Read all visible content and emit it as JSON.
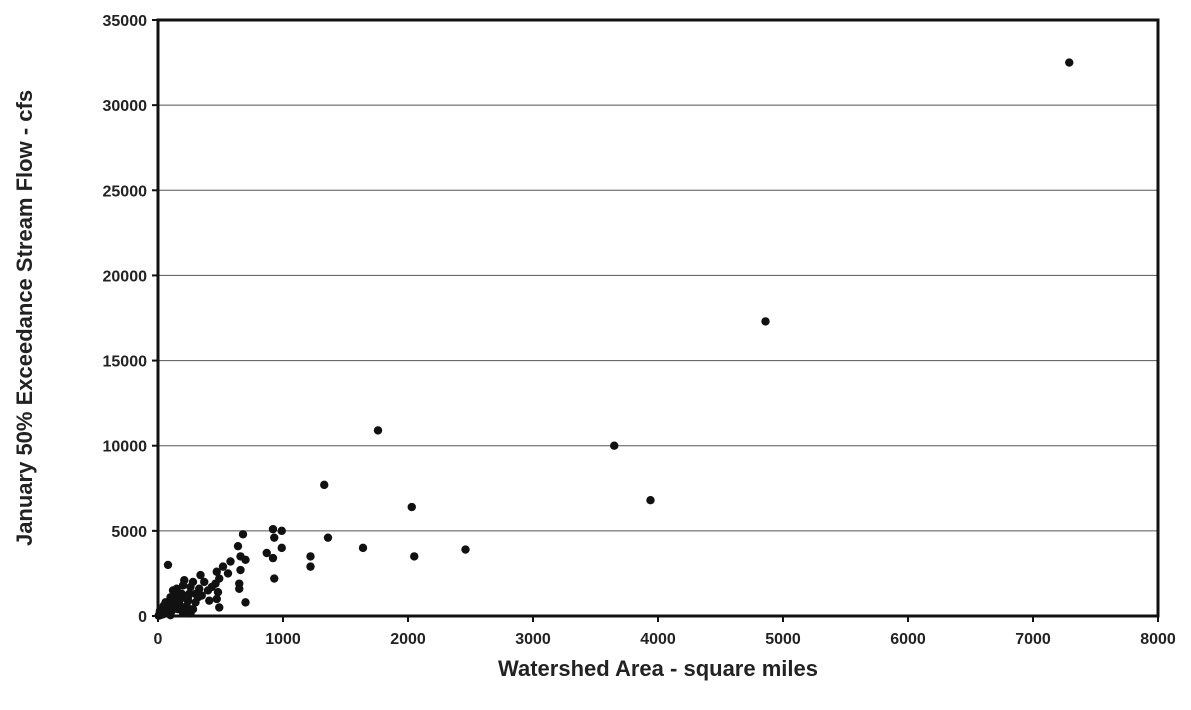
{
  "chart_data": {
    "type": "scatter",
    "title": "",
    "xlabel": "Watershed Area - square miles",
    "ylabel": "January 50% Exceedance Stream Flow - cfs",
    "xlim": [
      0,
      8000
    ],
    "ylim": [
      0,
      35000
    ],
    "x_ticks": [
      "0",
      "1000",
      "2000",
      "3000",
      "4000",
      "5000",
      "6000",
      "7000",
      "8000"
    ],
    "y_ticks": [
      "0",
      "5000",
      "10000",
      "15000",
      "20000",
      "25000",
      "30000",
      "35000"
    ],
    "grid": "horizontal",
    "legend": "none",
    "colors": {
      "point": "#111111",
      "grid": "#555555",
      "frame": "#111111"
    },
    "series": [
      {
        "points": [
          [
            7290,
            32500
          ],
          [
            4860,
            17300
          ],
          [
            3650,
            10000
          ],
          [
            3940,
            6800
          ],
          [
            1760,
            10900
          ],
          [
            1330,
            7700
          ],
          [
            2030,
            6400
          ],
          [
            2050,
            3500
          ],
          [
            2460,
            3900
          ],
          [
            1640,
            4000
          ],
          [
            1360,
            4600
          ],
          [
            1220,
            3500
          ],
          [
            1220,
            2900
          ],
          [
            920,
            5100
          ],
          [
            990,
            5000
          ],
          [
            990,
            4000
          ],
          [
            930,
            4600
          ],
          [
            870,
            3700
          ],
          [
            920,
            3400
          ],
          [
            930,
            2200
          ],
          [
            680,
            4800
          ],
          [
            640,
            4100
          ],
          [
            700,
            3300
          ],
          [
            660,
            3500
          ],
          [
            660,
            2700
          ],
          [
            650,
            1900
          ],
          [
            650,
            1600
          ],
          [
            700,
            800
          ],
          [
            580,
            3200
          ],
          [
            560,
            2500
          ],
          [
            520,
            2900
          ],
          [
            490,
            2200
          ],
          [
            470,
            2600
          ],
          [
            460,
            1900
          ],
          [
            480,
            1400
          ],
          [
            470,
            1000
          ],
          [
            490,
            500
          ],
          [
            430,
            1700
          ],
          [
            400,
            1500
          ],
          [
            370,
            2000
          ],
          [
            340,
            2400
          ],
          [
            330,
            1600
          ],
          [
            320,
            1100
          ],
          [
            300,
            800
          ],
          [
            280,
            2000
          ],
          [
            260,
            1700
          ],
          [
            250,
            1300
          ],
          [
            240,
            900
          ],
          [
            230,
            600
          ],
          [
            220,
            300
          ],
          [
            260,
            150
          ],
          [
            210,
            2100
          ],
          [
            200,
            1800
          ],
          [
            190,
            1300
          ],
          [
            180,
            1000
          ],
          [
            170,
            700
          ],
          [
            160,
            400
          ],
          [
            150,
            1600
          ],
          [
            140,
            1200
          ],
          [
            130,
            900
          ],
          [
            120,
            600
          ],
          [
            110,
            300
          ],
          [
            100,
            1100
          ],
          [
            90,
            700
          ],
          [
            80,
            3000
          ],
          [
            80,
            400
          ],
          [
            70,
            200
          ],
          [
            60,
            800
          ],
          [
            55,
            500
          ],
          [
            50,
            300
          ],
          [
            40,
            100
          ],
          [
            30,
            200
          ],
          [
            20,
            50
          ],
          [
            15,
            300
          ],
          [
            10,
            100
          ],
          [
            5,
            20
          ],
          [
            60,
            150
          ],
          [
            100,
            50
          ],
          [
            200,
            200
          ],
          [
            350,
            1200
          ],
          [
            410,
            900
          ],
          [
            300,
            1300
          ],
          [
            150,
            500
          ],
          [
            45,
            600
          ],
          [
            120,
            1500
          ],
          [
            180,
            500
          ],
          [
            240,
            1100
          ],
          [
            280,
            400
          ]
        ]
      }
    ]
  }
}
